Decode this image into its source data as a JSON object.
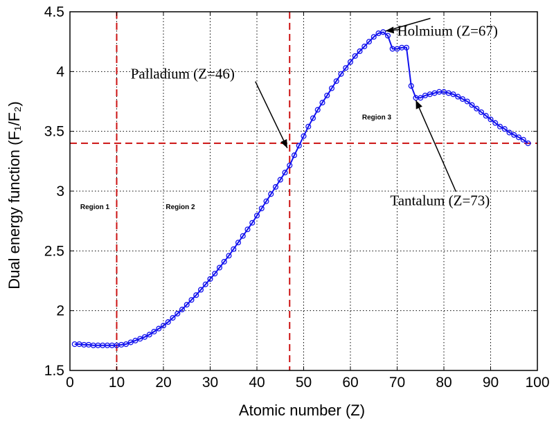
{
  "chart_data": {
    "type": "line",
    "xlabel": "Atomic number (Z)",
    "ylabel": "Dual energy function (F₁/F₂)",
    "xlim": [
      0,
      100
    ],
    "ylim": [
      1.5,
      4.5
    ],
    "x_ticks": [
      "0",
      "10",
      "20",
      "30",
      "40",
      "50",
      "60",
      "70",
      "80",
      "90",
      "100"
    ],
    "y_ticks": [
      "1.5",
      "2",
      "2.5",
      "3",
      "3.5",
      "4",
      "4.5"
    ],
    "grid": true,
    "line_color": "#1010ee",
    "reference_line_color": "#cc1111",
    "vlines": [
      10,
      47
    ],
    "hline": 3.4,
    "series": [
      {
        "marker": "circle",
        "x": [
          1,
          2,
          3,
          4,
          5,
          6,
          7,
          8,
          9,
          10,
          11,
          12,
          13,
          14,
          15,
          16,
          17,
          18,
          19,
          20,
          21,
          22,
          23,
          24,
          25,
          26,
          27,
          28,
          29,
          30,
          31,
          32,
          33,
          34,
          35,
          36,
          37,
          38,
          39,
          40,
          41,
          42,
          43,
          44,
          45,
          46,
          47,
          48,
          49,
          50,
          51,
          52,
          53,
          54,
          55,
          56,
          57,
          58,
          59,
          60,
          61,
          62,
          63,
          64,
          65,
          66,
          67,
          68,
          69,
          70,
          71,
          72,
          73,
          74,
          75,
          76,
          77,
          78,
          79,
          80,
          81,
          82,
          83,
          84,
          85,
          86,
          87,
          88,
          89,
          90,
          91,
          92,
          93,
          94,
          95,
          96,
          97,
          98
        ],
        "y": [
          1.72,
          1.72,
          1.715,
          1.715,
          1.71,
          1.71,
          1.71,
          1.71,
          1.71,
          1.71,
          1.715,
          1.72,
          1.735,
          1.75,
          1.765,
          1.78,
          1.8,
          1.825,
          1.85,
          1.875,
          1.905,
          1.94,
          1.975,
          2.01,
          2.05,
          2.09,
          2.13,
          2.175,
          2.22,
          2.265,
          2.31,
          2.36,
          2.41,
          2.46,
          2.515,
          2.57,
          2.625,
          2.68,
          2.735,
          2.795,
          2.855,
          2.915,
          2.975,
          3.035,
          3.095,
          3.155,
          3.215,
          3.3,
          3.38,
          3.46,
          3.54,
          3.61,
          3.68,
          3.74,
          3.8,
          3.86,
          3.92,
          3.98,
          4.03,
          4.08,
          4.13,
          4.17,
          4.21,
          4.25,
          4.29,
          4.32,
          4.33,
          4.3,
          4.19,
          4.19,
          4.2,
          4.2,
          3.88,
          3.78,
          3.78,
          3.8,
          3.81,
          3.82,
          3.83,
          3.83,
          3.82,
          3.81,
          3.79,
          3.77,
          3.75,
          3.72,
          3.69,
          3.66,
          3.63,
          3.6,
          3.57,
          3.54,
          3.52,
          3.49,
          3.47,
          3.45,
          3.43,
          3.4
        ]
      }
    ],
    "region_labels": [
      {
        "text": "Region 1",
        "x": 2.2,
        "y": 2.85
      },
      {
        "text": "Region 2",
        "x": 20.5,
        "y": 2.85
      },
      {
        "text": "Region 3",
        "x": 62.5,
        "y": 3.6
      }
    ],
    "annotations": [
      {
        "text": "Palladium (Z=46)",
        "text_x": 13,
        "text_y": 3.94,
        "target_x": 46.5,
        "target_y": 3.36
      },
      {
        "text": "Holmium (Z=67)",
        "text_x": 70,
        "text_y": 4.3,
        "target_x": 67.5,
        "target_y": 4.34
      },
      {
        "text": "Tantalum (Z=73)",
        "text_x": 68.5,
        "text_y": 2.88,
        "target_x": 74,
        "target_y": 3.76
      }
    ]
  }
}
